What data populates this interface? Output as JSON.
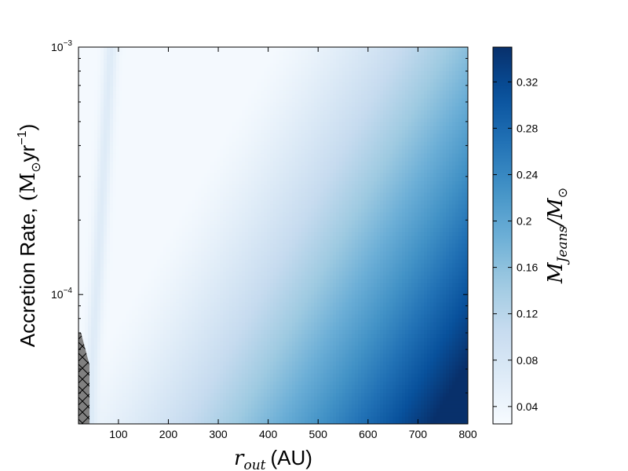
{
  "chart_data": {
    "type": "heatmap",
    "title": "",
    "xlabel": {
      "symbol": "r",
      "subscript": "out",
      "unit": "(AU)"
    },
    "ylabel": {
      "text": "Accretion Rate,",
      "unit_open": "(M",
      "unit_sub": "⊙",
      "unit_mid": "yr",
      "unit_sup": "−1",
      "unit_close": ")"
    },
    "colorbar_label": {
      "symbol": "M",
      "subscript": "Jeans",
      "separator": "/M",
      "sub2": "⊙"
    },
    "colormap": "Blues",
    "x_range": [
      20,
      800
    ],
    "y_range": [
      3e-05,
      0.001
    ],
    "y_scale": "log",
    "x_ticks": [
      100,
      200,
      300,
      400,
      500,
      600,
      700,
      800
    ],
    "x_tick_labels": [
      "100",
      "200",
      "300",
      "400",
      "500",
      "600",
      "700",
      "800"
    ],
    "y_ticks": [
      0.0001,
      0.001
    ],
    "y_tick_labels": [
      {
        "base": "10",
        "exp": "−4"
      },
      {
        "base": "10",
        "exp": "−3"
      }
    ],
    "color_range": [
      0.025,
      0.35
    ],
    "colorbar_ticks": [
      0.04,
      0.08,
      0.12,
      0.16,
      0.2,
      0.24,
      0.28,
      0.32
    ],
    "colorbar_tick_labels": [
      "0.04",
      "0.08",
      "0.12",
      "0.16",
      "0.2",
      "0.24",
      "0.28",
      "0.32"
    ],
    "excluded_region": {
      "pattern": "hatched-x",
      "color": "#808080",
      "boundary": [
        [
          20,
          3e-05
        ],
        [
          42,
          3e-05
        ],
        [
          42,
          5.2e-05
        ],
        [
          25,
          7e-05
        ],
        [
          20,
          7e-05
        ]
      ]
    },
    "grid": false,
    "legend": "none"
  }
}
